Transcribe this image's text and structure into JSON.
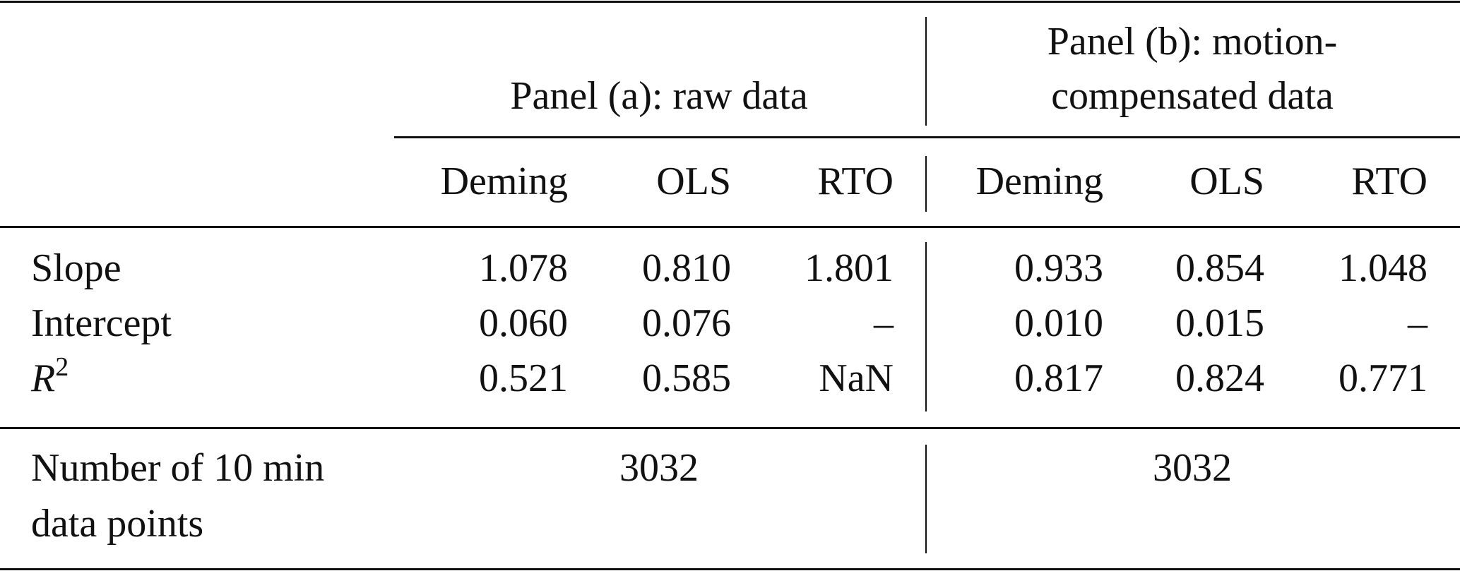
{
  "table": {
    "panels": [
      {
        "title_lines": [
          "Panel (a): raw data"
        ],
        "columns": [
          "Deming",
          "OLS",
          "RTO"
        ]
      },
      {
        "title_lines": [
          "Panel (b): motion-",
          "compensated data"
        ],
        "columns": [
          "Deming",
          "OLS",
          "RTO"
        ]
      }
    ],
    "rows": [
      {
        "label": "Slope",
        "values": [
          "1.078",
          "0.810",
          "1.801",
          "0.933",
          "0.854",
          "1.048"
        ]
      },
      {
        "label": "Intercept",
        "values": [
          "0.060",
          "0.076",
          "–",
          "0.010",
          "0.015",
          "–"
        ]
      },
      {
        "label": {
          "symbol": "R",
          "superscript": "2"
        },
        "values": [
          "0.521",
          "0.585",
          "NaN",
          "0.817",
          "0.824",
          "0.771"
        ]
      }
    ],
    "footer_row": {
      "label_lines": [
        "Number of 10 min",
        "data points"
      ],
      "values": [
        "3032",
        "3032"
      ]
    }
  }
}
